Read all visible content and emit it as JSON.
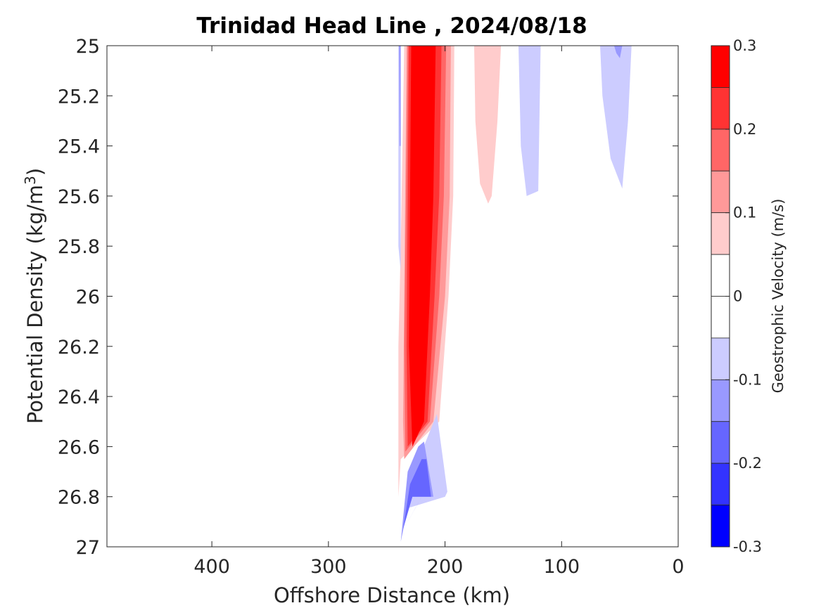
{
  "chart_data": {
    "type": "contour",
    "title": "Trinidad Head Line , 2024/08/18",
    "xlabel": "Offshore Distance (km)",
    "ylabel_main": "Potential Density (kg/m",
    "ylabel_sup": "3",
    "ylabel_tail": ")",
    "xlim": [
      490,
      0
    ],
    "x_reversed": true,
    "ylim": [
      25,
      27
    ],
    "y_reversed": true,
    "xticks": [
      400,
      300,
      200,
      100,
      0
    ],
    "yticks": [
      25,
      25.2,
      25.4,
      25.6,
      25.8,
      26,
      26.2,
      26.4,
      26.6,
      26.8,
      27
    ],
    "ytick_labels": [
      "25",
      "25.2",
      "25.4",
      "25.6",
      "25.8",
      "26",
      "26.2",
      "26.4",
      "26.6",
      "26.8",
      "27"
    ],
    "colorbar": {
      "label": "Geostrophic Velocity (m/s)",
      "limits": [
        -0.3,
        0.3
      ],
      "tick_values": [
        0.3,
        0.2,
        0.1,
        0,
        -0.1,
        -0.2,
        -0.3
      ],
      "tick_labels": [
        "0.3",
        "0.2",
        "0.1",
        "0",
        "-0.1",
        "-0.2",
        "-0.3"
      ],
      "levels": [
        {
          "range": [
            0.25,
            0.3
          ],
          "color": "#ff0000"
        },
        {
          "range": [
            0.2,
            0.25
          ],
          "color": "#ff3333"
        },
        {
          "range": [
            0.15,
            0.2
          ],
          "color": "#ff6666"
        },
        {
          "range": [
            0.1,
            0.15
          ],
          "color": "#ff9999"
        },
        {
          "range": [
            0.05,
            0.1
          ],
          "color": "#ffcccc"
        },
        {
          "range": [
            0,
            0.05
          ],
          "color": "#ffffff"
        },
        {
          "range": [
            -0.05,
            0
          ],
          "color": "#ffffff"
        },
        {
          "range": [
            -0.1,
            -0.05
          ],
          "color": "#ccccff"
        },
        {
          "range": [
            -0.15,
            -0.1
          ],
          "color": "#9999ff"
        },
        {
          "range": [
            -0.2,
            -0.15
          ],
          "color": "#6666ff"
        },
        {
          "range": [
            -0.25,
            -0.2
          ],
          "color": "#3333ff"
        },
        {
          "range": [
            -0.3,
            -0.25
          ],
          "color": "#0000ff"
        }
      ]
    },
    "regions": [
      {
        "level": 0.05,
        "color": "#ffcccc",
        "points": [
          [
            235,
            25
          ],
          [
            192,
            25
          ],
          [
            193,
            25.6
          ],
          [
            197,
            26.0
          ],
          [
            205,
            26.5
          ],
          [
            238,
            26.65
          ],
          [
            240,
            26.8
          ],
          [
            240,
            26.2
          ],
          [
            238,
            25.8
          ]
        ]
      },
      {
        "level": 0.1,
        "color": "#ff9999",
        "points": [
          [
            233,
            25
          ],
          [
            195,
            25
          ],
          [
            196,
            25.6
          ],
          [
            200,
            26.0
          ],
          [
            210,
            26.5
          ],
          [
            235,
            26.65
          ],
          [
            236,
            26.5
          ]
        ]
      },
      {
        "level": 0.15,
        "color": "#ff6666",
        "points": [
          [
            232,
            25
          ],
          [
            199,
            25
          ],
          [
            201,
            25.6
          ],
          [
            205,
            26.0
          ],
          [
            213,
            26.5
          ],
          [
            234,
            26.62
          ],
          [
            235,
            26.2
          ]
        ]
      },
      {
        "level": 0.2,
        "color": "#ff3333",
        "points": [
          [
            231,
            25
          ],
          [
            203,
            25
          ],
          [
            205,
            25.6
          ],
          [
            209,
            26.0
          ],
          [
            215,
            26.5
          ],
          [
            232,
            26.6
          ],
          [
            233,
            26.2
          ]
        ]
      },
      {
        "level": 0.25,
        "color": "#ff0000",
        "points": [
          [
            229,
            25
          ],
          [
            208,
            25
          ],
          [
            210,
            25.6
          ],
          [
            213,
            26.0
          ],
          [
            218,
            26.5
          ],
          [
            228,
            26.6
          ],
          [
            231,
            26.2
          ]
        ]
      },
      {
        "level": 0.05,
        "color": "#ffcccc",
        "points": [
          [
            175,
            25
          ],
          [
            152,
            25
          ],
          [
            155,
            25.3
          ],
          [
            160,
            25.6
          ],
          [
            163,
            25.63
          ],
          [
            170,
            25.55
          ],
          [
            174,
            25.3
          ]
        ]
      },
      {
        "level": -0.05,
        "color": "#ccccff",
        "points": [
          [
            240,
            25
          ],
          [
            238,
            25
          ],
          [
            238,
            25.5
          ],
          [
            238,
            25.9
          ],
          [
            240,
            25.8
          ]
        ]
      },
      {
        "level": -0.1,
        "color": "#9999ff",
        "points": [
          [
            239.5,
            25
          ],
          [
            238,
            25
          ],
          [
            238,
            25.4
          ],
          [
            239,
            25.4
          ]
        ]
      },
      {
        "level": -0.05,
        "color": "#ccccff",
        "points": [
          [
            137,
            25
          ],
          [
            118,
            25
          ],
          [
            120,
            25.58
          ],
          [
            130,
            25.6
          ],
          [
            135,
            25.4
          ]
        ]
      },
      {
        "level": -0.05,
        "color": "#ccccff",
        "points": [
          [
            67,
            25
          ],
          [
            40,
            25
          ],
          [
            43,
            25.3
          ],
          [
            48,
            25.57
          ],
          [
            58,
            25.45
          ],
          [
            65,
            25.2
          ]
        ]
      },
      {
        "level": -0.1,
        "color": "#9999ff",
        "points": [
          [
            55,
            25
          ],
          [
            48,
            25
          ],
          [
            50,
            25.05
          ],
          [
            53,
            25.03
          ]
        ]
      },
      {
        "level": -0.05,
        "color": "#ccccff",
        "points": [
          [
            220,
            26.62
          ],
          [
            207,
            26.47
          ],
          [
            198,
            26.78
          ],
          [
            200,
            26.8
          ],
          [
            235,
            26.85
          ],
          [
            240,
            27.0
          ],
          [
            230,
            26.7
          ]
        ]
      },
      {
        "level": -0.1,
        "color": "#9999ff",
        "points": [
          [
            223,
            26.6
          ],
          [
            218,
            26.58
          ],
          [
            210,
            26.8
          ],
          [
            230,
            26.8
          ],
          [
            238,
            26.98
          ],
          [
            232,
            26.7
          ]
        ]
      },
      {
        "level": -0.15,
        "color": "#6666ff",
        "points": [
          [
            220,
            26.65
          ],
          [
            216,
            26.65
          ],
          [
            212,
            26.8
          ],
          [
            228,
            26.8
          ],
          [
            236,
            26.93
          ],
          [
            230,
            26.75
          ]
        ]
      },
      {
        "level": -0.2,
        "color": "#3333ff",
        "points": [
          [
            226,
            26.85
          ],
          [
            220,
            26.8
          ],
          [
            232,
            26.9
          ]
        ]
      }
    ]
  }
}
